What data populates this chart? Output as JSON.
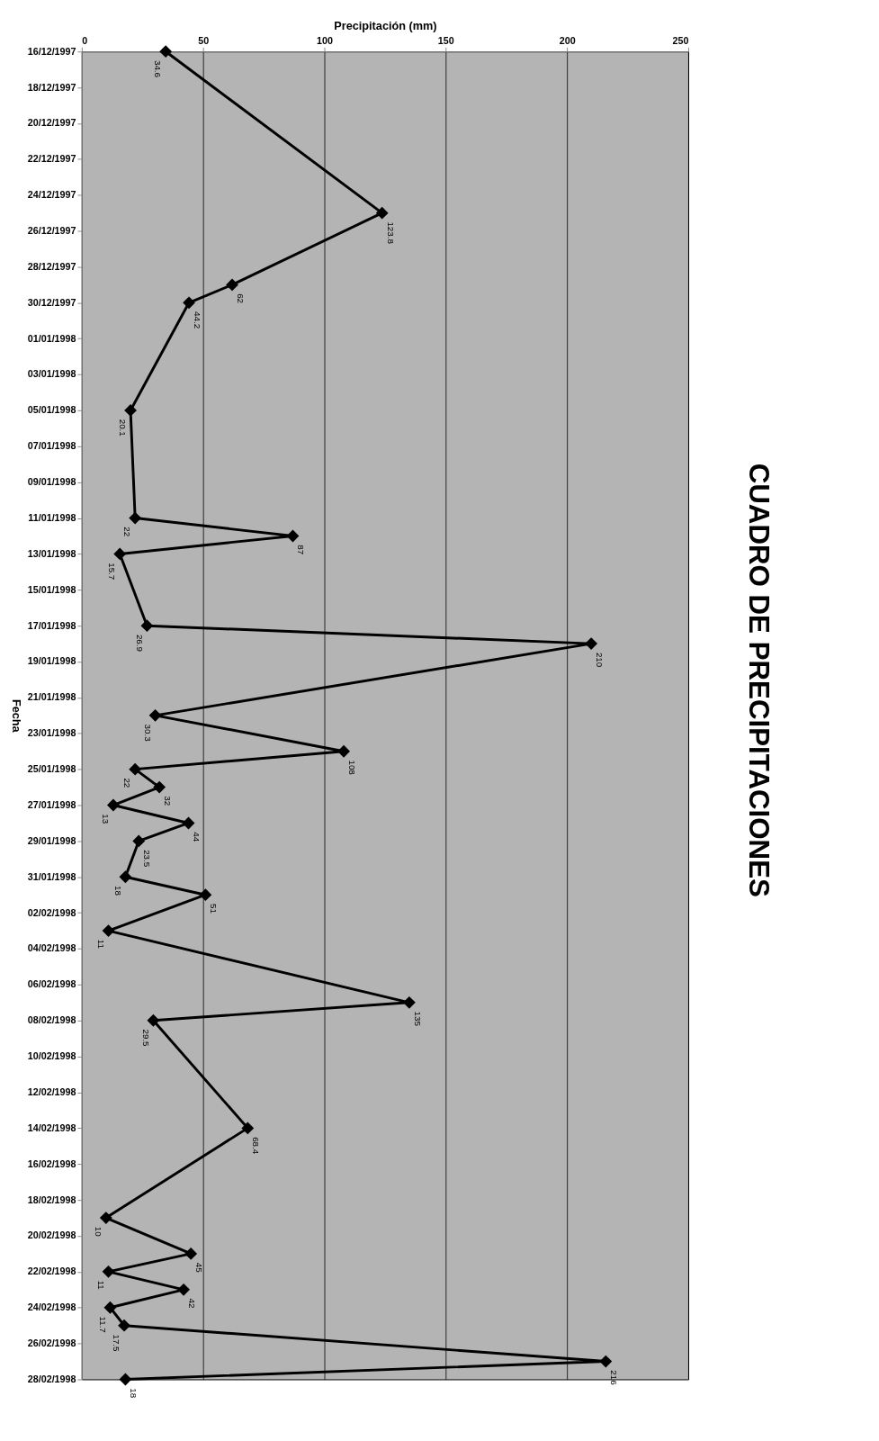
{
  "chart_data": {
    "type": "line",
    "orientation": "horizontal",
    "title": "CUADRO DE PRECIPITACIONES",
    "ylabel": "Fecha",
    "xlabel": "Precipitación (mm)",
    "x": [
      "1997-12-16",
      "1997-12-25",
      "1997-12-29",
      "1997-12-30",
      "1998-01-05",
      "1998-01-11",
      "1998-01-12",
      "1998-01-13",
      "1998-01-17",
      "1998-01-18",
      "1998-01-22",
      "1998-01-24",
      "1998-01-25",
      "1998-01-26",
      "1998-01-27",
      "1998-01-28",
      "1998-01-29",
      "1998-01-31",
      "1998-02-01",
      "1998-02-03",
      "1998-02-07",
      "1998-02-08",
      "1998-02-14",
      "1998-02-19",
      "1998-02-21",
      "1998-02-22",
      "1998-02-23",
      "1998-02-24",
      "1998-02-25",
      "1998-02-27",
      "1998-02-28"
    ],
    "series": [
      {
        "color": "#000000",
        "values": [
          34.6,
          123.8,
          62,
          44.2,
          20.1,
          22,
          87,
          15.7,
          26.9,
          210,
          30.3,
          108,
          22,
          32,
          13,
          44,
          23.5,
          18,
          51,
          11,
          135,
          29.5,
          68.4,
          10,
          45,
          11,
          42,
          11.7,
          17.5,
          216,
          18
        ]
      }
    ],
    "ylim": [
      "1998-02-28",
      "1997-12-16"
    ],
    "yticks": [
      {
        "value": "1997-12-16",
        "label": "16/12/1997"
      },
      {
        "value": "1997-12-18",
        "label": "18/12/1997"
      },
      {
        "value": "1997-12-20",
        "label": "20/12/1997"
      },
      {
        "value": "1997-12-22",
        "label": "22/12/1997"
      },
      {
        "value": "1997-12-24",
        "label": "24/12/1997"
      },
      {
        "value": "1997-12-26",
        "label": "26/12/1997"
      },
      {
        "value": "1997-12-28",
        "label": "28/12/1997"
      },
      {
        "value": "1997-12-30",
        "label": "30/12/1997"
      },
      {
        "value": "1998-01-01",
        "label": "01/01/1998"
      },
      {
        "value": "1998-01-03",
        "label": "03/01/1998"
      },
      {
        "value": "1998-01-05",
        "label": "05/01/1998"
      },
      {
        "value": "1998-01-07",
        "label": "07/01/1998"
      },
      {
        "value": "1998-01-09",
        "label": "09/01/1998"
      },
      {
        "value": "1998-01-11",
        "label": "11/01/1998"
      },
      {
        "value": "1998-01-13",
        "label": "13/01/1998"
      },
      {
        "value": "1998-01-15",
        "label": "15/01/1998"
      },
      {
        "value": "1998-01-17",
        "label": "17/01/1998"
      },
      {
        "value": "1998-01-19",
        "label": "19/01/1998"
      },
      {
        "value": "1998-01-21",
        "label": "21/01/1998"
      },
      {
        "value": "1998-01-23",
        "label": "23/01/1998"
      },
      {
        "value": "1998-01-25",
        "label": "25/01/1998"
      },
      {
        "value": "1998-01-27",
        "label": "27/01/1998"
      },
      {
        "value": "1998-01-29",
        "label": "29/01/1998"
      },
      {
        "value": "1998-01-31",
        "label": "31/01/1998"
      },
      {
        "value": "1998-02-02",
        "label": "02/02/1998"
      },
      {
        "value": "1998-02-04",
        "label": "04/02/1998"
      },
      {
        "value": "1998-02-06",
        "label": "06/02/1998"
      },
      {
        "value": "1998-02-08",
        "label": "08/02/1998"
      },
      {
        "value": "1998-02-10",
        "label": "10/02/1998"
      },
      {
        "value": "1998-02-12",
        "label": "12/02/1998"
      },
      {
        "value": "1998-02-14",
        "label": "14/02/1998"
      },
      {
        "value": "1998-02-16",
        "label": "16/02/1998"
      },
      {
        "value": "1998-02-18",
        "label": "18/02/1998"
      },
      {
        "value": "1998-02-20",
        "label": "20/02/1998"
      },
      {
        "value": "1998-02-22",
        "label": "22/02/1998"
      },
      {
        "value": "1998-02-24",
        "label": "24/02/1998"
      },
      {
        "value": "1998-02-26",
        "label": "26/02/1998"
      },
      {
        "value": "1998-02-28",
        "label": "28/02/1998"
      }
    ],
    "xlim": [
      0,
      250
    ],
    "xticks": [
      0,
      50,
      100,
      150,
      200,
      250
    ],
    "grid": "x",
    "marker": "diamond",
    "line_style": "solid",
    "data_labels": true
  }
}
